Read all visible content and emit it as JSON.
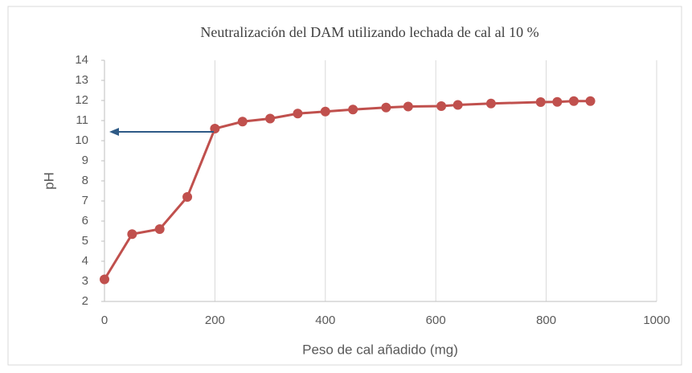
{
  "chart_data": {
    "type": "line",
    "title": "Neutralización del DAM utilizando lechada de cal al 10 %",
    "x_label": "Peso de cal añadido (mg)",
    "y_label": "pH",
    "x": [
      0,
      50,
      100,
      150,
      200,
      250,
      300,
      350,
      400,
      450,
      510,
      550,
      610,
      640,
      700,
      790,
      820,
      850,
      880
    ],
    "values": [
      3.1,
      5.35,
      5.6,
      7.2,
      10.6,
      10.95,
      11.1,
      11.35,
      11.45,
      11.55,
      11.65,
      11.7,
      11.72,
      11.78,
      11.85,
      11.92,
      11.93,
      11.97,
      11.97
    ],
    "color": "#c0504d",
    "xlim": [
      0,
      1000
    ],
    "xticks": [
      0,
      200,
      400,
      600,
      800,
      1000
    ],
    "ylim": [
      2,
      14
    ],
    "yticks": [
      2,
      3,
      4,
      5,
      6,
      7,
      8,
      9,
      10,
      11,
      12,
      13,
      14
    ],
    "grid": "x"
  }
}
